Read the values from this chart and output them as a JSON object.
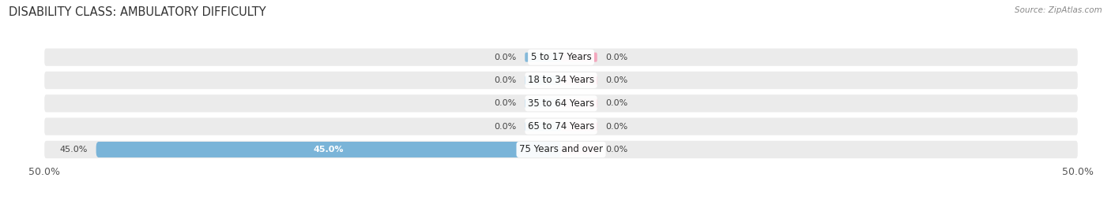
{
  "title": "DISABILITY CLASS: AMBULATORY DIFFICULTY",
  "source": "Source: ZipAtlas.com",
  "categories": [
    "5 to 17 Years",
    "18 to 34 Years",
    "35 to 64 Years",
    "65 to 74 Years",
    "75 Years and over"
  ],
  "male_values": [
    0.0,
    0.0,
    0.0,
    0.0,
    45.0
  ],
  "female_values": [
    0.0,
    0.0,
    0.0,
    0.0,
    0.0
  ],
  "xlim": 50.0,
  "male_color": "#7ab4d8",
  "female_color": "#f4a0b8",
  "row_bg_light": "#f0f0f0",
  "row_bg_dark": "#e4e4e4",
  "label_color": "#444444",
  "title_fontsize": 10.5,
  "tick_fontsize": 9,
  "label_fontsize": 8,
  "category_fontsize": 8.5,
  "legend_fontsize": 9,
  "min_bar_display": 3.0,
  "zero_bar_width": 3.5
}
